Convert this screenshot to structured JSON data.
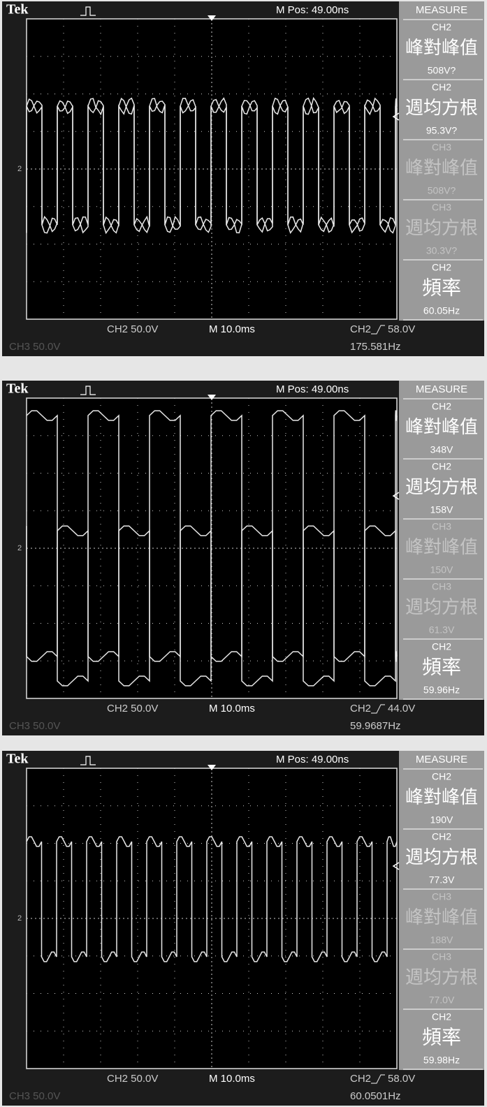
{
  "screens": [
    {
      "header": {
        "brand": "Tek",
        "position": "M Pos: 49.00ns",
        "menu_title": "MEASURE"
      },
      "ch2_marker": "2",
      "measurements": [
        {
          "channel": "CH2",
          "label": "峰對峰值",
          "value": "508V?"
        },
        {
          "channel": "CH2",
          "label": "週均方根",
          "value": "95.3V?"
        },
        {
          "channel": "CH3",
          "label": "峰對峰值",
          "value": "508V?"
        },
        {
          "channel": "CH3",
          "label": "週均方根",
          "value": "30.3V?"
        },
        {
          "channel": "CH2",
          "label": "頻率",
          "value": "60.05Hz"
        }
      ],
      "footer": {
        "ch2_scale": "CH2  50.0V",
        "timebase": "M 10.0ms",
        "trigger_source": "CH2",
        "trigger_level": "58.0V",
        "ch3_scale": "CH3  50.0V",
        "trigger_frequency": "175.581Hz"
      }
    },
    {
      "header": {
        "brand": "Tek",
        "position": "M Pos: 49.00ns",
        "menu_title": "MEASURE"
      },
      "ch2_marker": "2",
      "measurements": [
        {
          "channel": "CH2",
          "label": "峰對峰值",
          "value": "348V"
        },
        {
          "channel": "CH2",
          "label": "週均方根",
          "value": "158V"
        },
        {
          "channel": "CH3",
          "label": "峰對峰值",
          "value": "150V"
        },
        {
          "channel": "CH3",
          "label": "週均方根",
          "value": "61.3V"
        },
        {
          "channel": "CH2",
          "label": "頻率",
          "value": "59.96Hz"
        }
      ],
      "footer": {
        "ch2_scale": "CH2  50.0V",
        "timebase": "M 10.0ms",
        "trigger_source": "CH2",
        "trigger_level": "44.0V",
        "ch3_scale": "CH3  50.0V",
        "trigger_frequency": "59.9687Hz"
      }
    },
    {
      "header": {
        "brand": "Tek",
        "position": "M Pos: 49.00ns",
        "menu_title": "MEASURE"
      },
      "ch2_marker": "2",
      "measurements": [
        {
          "channel": "CH2",
          "label": "峰對峰值",
          "value": "190V"
        },
        {
          "channel": "CH2",
          "label": "週均方根",
          "value": "77.3V"
        },
        {
          "channel": "CH3",
          "label": "峰對峰值",
          "value": "188V"
        },
        {
          "channel": "CH3",
          "label": "週均方根",
          "value": "77.0V"
        },
        {
          "channel": "CH2",
          "label": "頻率",
          "value": "59.98Hz"
        }
      ],
      "footer": {
        "ch2_scale": "CH2  50.0V",
        "timebase": "M 10.0ms",
        "trigger_source": "CH2",
        "trigger_level": "58.0V",
        "ch3_scale": "CH3  50.0V",
        "trigger_frequency": "60.0501Hz"
      }
    }
  ]
}
